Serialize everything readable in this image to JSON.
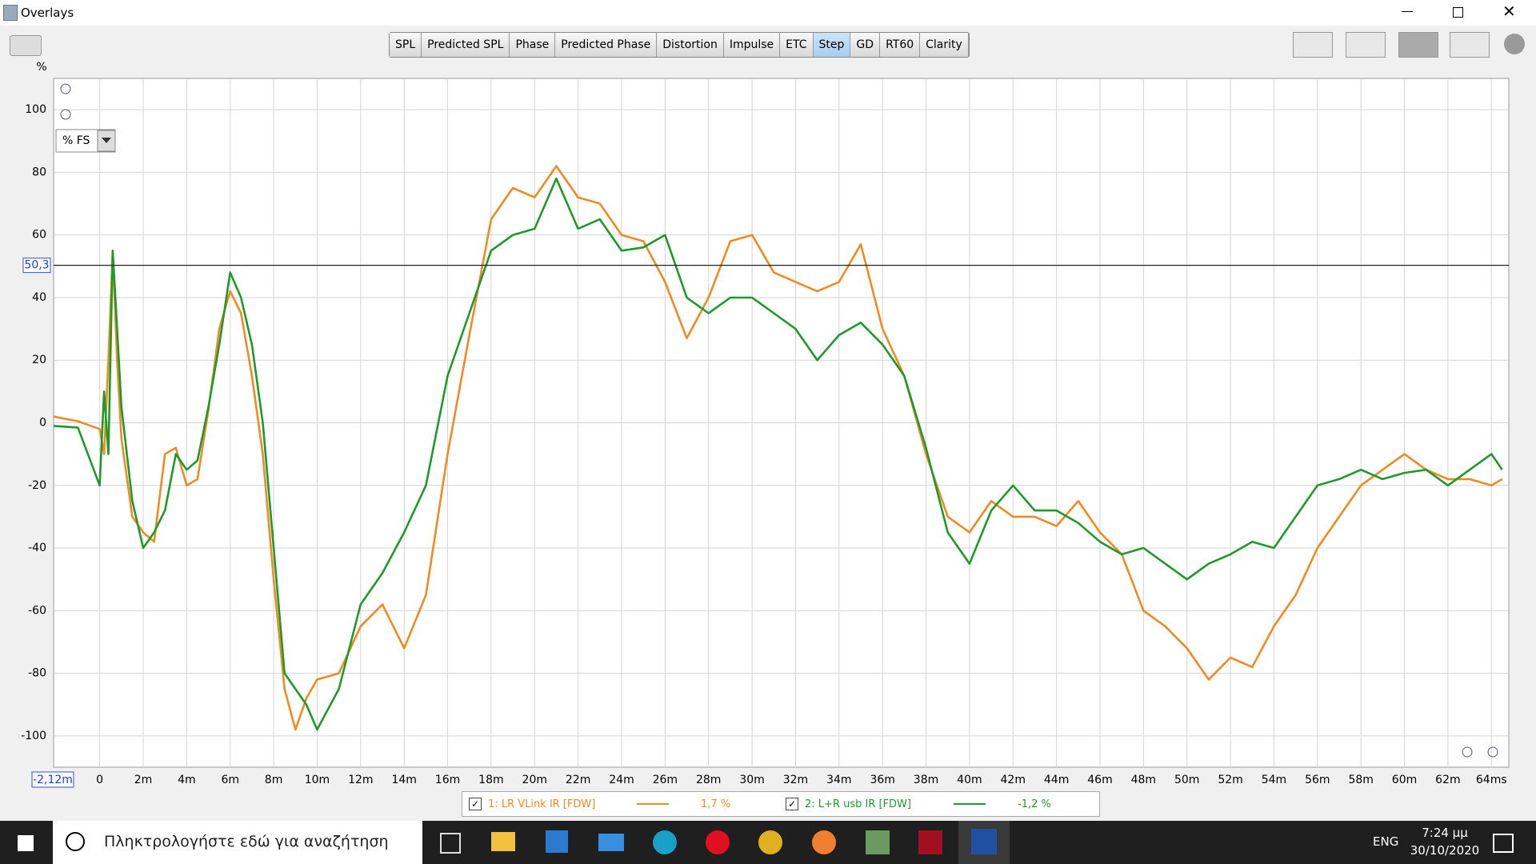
{
  "window": {
    "title": "Overlays"
  },
  "tabs": [
    "SPL",
    "Predicted SPL",
    "Phase",
    "Predicted Phase",
    "Distortion",
    "Impulse",
    "ETC",
    "Step",
    "GD",
    "RT60",
    "Clarity"
  ],
  "active_tab_index": 7,
  "unit_selector": "% FS",
  "chart_data": {
    "type": "line",
    "y_axis_label": "%",
    "xlim": [
      -2.12,
      64.8
    ],
    "x_start_label": "-2,12m",
    "ylim": [
      -110,
      110
    ],
    "xticks": [
      0,
      {
        "value": 2,
        "label": "2m"
      },
      {
        "value": 4,
        "label": "4m"
      },
      {
        "value": 6,
        "label": "6m"
      },
      {
        "value": 8,
        "label": "8m"
      },
      {
        "value": 10,
        "label": "10m"
      },
      {
        "value": 12,
        "label": "12m"
      },
      {
        "value": 14,
        "label": "14m"
      },
      {
        "value": 16,
        "label": "16m"
      },
      {
        "value": 18,
        "label": "18m"
      },
      {
        "value": 20,
        "label": "20m"
      },
      {
        "value": 22,
        "label": "22m"
      },
      {
        "value": 24,
        "label": "24m"
      },
      {
        "value": 26,
        "label": "26m"
      },
      {
        "value": 28,
        "label": "28m"
      },
      {
        "value": 30,
        "label": "30m"
      },
      {
        "value": 32,
        "label": "32m"
      },
      {
        "value": 34,
        "label": "34m"
      },
      {
        "value": 36,
        "label": "36m"
      },
      {
        "value": 38,
        "label": "38m"
      },
      {
        "value": 40,
        "label": "40m"
      },
      {
        "value": 42,
        "label": "42m"
      },
      {
        "value": 44,
        "label": "44m"
      },
      {
        "value": 46,
        "label": "46m"
      },
      {
        "value": 48,
        "label": "48m"
      },
      {
        "value": 50,
        "label": "50m"
      },
      {
        "value": 52,
        "label": "52m"
      },
      {
        "value": 54,
        "label": "54m"
      },
      {
        "value": 56,
        "label": "56m"
      },
      {
        "value": 58,
        "label": "58m"
      },
      {
        "value": 60,
        "label": "60m"
      },
      {
        "value": 62,
        "label": "62m"
      },
      {
        "value": 64,
        "label": "64ms"
      }
    ],
    "yticks": [
      -100,
      -80,
      -60,
      -40,
      -20,
      0,
      20,
      40,
      60,
      80,
      100
    ],
    "grid": true,
    "cursor": {
      "value": 50.3,
      "label": "50,3"
    },
    "x": [
      -2.12,
      -1,
      0,
      0.2,
      0.4,
      0.6,
      0.8,
      1,
      1.5,
      2,
      2.5,
      3,
      3.5,
      4,
      4.5,
      5,
      5.5,
      6,
      6.5,
      7,
      7.5,
      8,
      8.5,
      9,
      9.5,
      10,
      11,
      12,
      13,
      14,
      15,
      16,
      17,
      18,
      19,
      20,
      21,
      22,
      23,
      24,
      25,
      26,
      27,
      28,
      29,
      30,
      31,
      32,
      33,
      34,
      35,
      36,
      37,
      38,
      39,
      40,
      41,
      42,
      43,
      44,
      45,
      46,
      47,
      48,
      49,
      50,
      51,
      52,
      53,
      54,
      55,
      56,
      57,
      58,
      59,
      60,
      61,
      62,
      63,
      64,
      64.5
    ],
    "series": [
      {
        "name": "1: LR VLink IR [FDW]",
        "color": "#f08a24",
        "readout": "1,7 %",
        "values": [
          2,
          0.5,
          -2,
          -10,
          20,
          55,
          20,
          -5,
          -30,
          -35,
          -38,
          -10,
          -8,
          -20,
          -18,
          4,
          30,
          42,
          35,
          15,
          -10,
          -50,
          -85,
          -98,
          -88,
          -82,
          -80,
          -65,
          -58,
          -72,
          -55,
          -10,
          28,
          65,
          75,
          72,
          82,
          72,
          70,
          60,
          58,
          45,
          27,
          40,
          58,
          60,
          48,
          45,
          42,
          45,
          57,
          30,
          15,
          -10,
          -30,
          -35,
          -25,
          -30,
          -30,
          -33,
          -25,
          -35,
          -42,
          -60,
          -65,
          -72,
          -82,
          -75,
          -78,
          -65,
          -55,
          -40,
          -30,
          -20,
          -15,
          -10,
          -15,
          -18,
          -18,
          -20,
          -18
        ]
      },
      {
        "name": "2: L+R usb IR [FDW]",
        "color": "#1f9a2a",
        "readout": "-1,2 %",
        "values": [
          -1,
          -1.5,
          -20,
          10,
          -10,
          55,
          30,
          5,
          -25,
          -40,
          -35,
          -28,
          -10,
          -15,
          -12,
          5,
          25,
          48,
          40,
          25,
          0,
          -40,
          -80,
          -85,
          -90,
          -98,
          -85,
          -58,
          -48,
          -35,
          -20,
          15,
          35,
          55,
          60,
          62,
          78,
          62,
          65,
          55,
          56,
          60,
          40,
          35,
          40,
          40,
          35,
          30,
          20,
          28,
          32,
          25,
          15,
          -8,
          -35,
          -45,
          -28,
          -20,
          -28,
          -28,
          -32,
          -38,
          -42,
          -40,
          -45,
          -50,
          -45,
          -42,
          -38,
          -40,
          -30,
          -20,
          -18,
          -15,
          -18,
          -16,
          -15,
          -20,
          -15,
          -10,
          -15
        ]
      }
    ]
  },
  "taskbar": {
    "search": "Πληκτρολογήστε εδώ για αναζήτηση",
    "language": "ENG",
    "time": "7:24 μμ",
    "date": "30/10/2020"
  }
}
